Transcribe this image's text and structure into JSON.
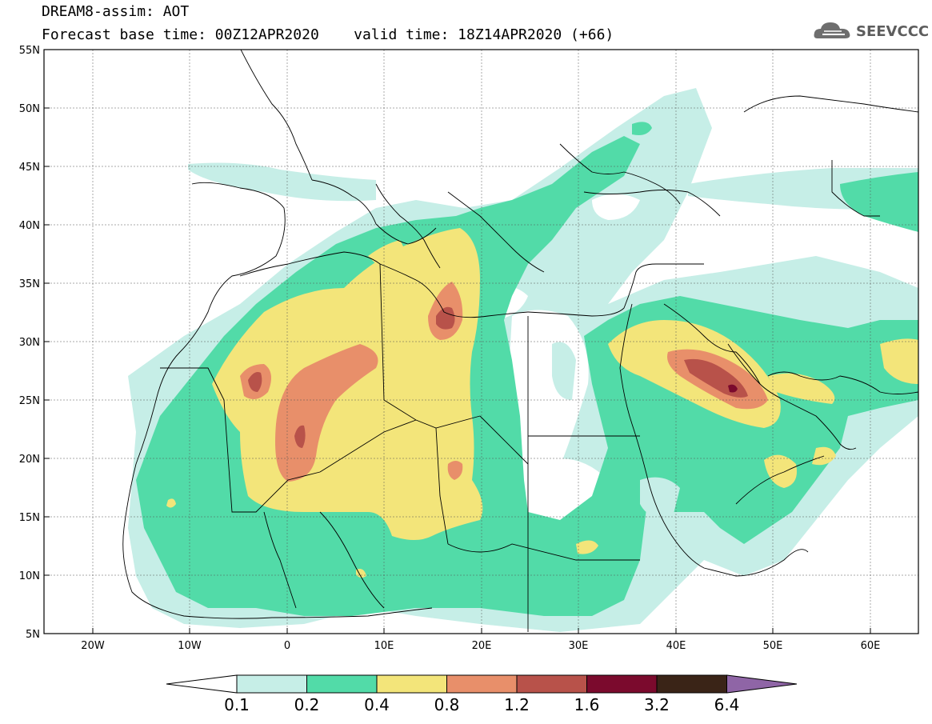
{
  "header": {
    "title_line1": "DREAM8-assim: AOT",
    "title_line2": "Forecast base time: 00Z12APR2020    valid time: 18Z14APR2020 (+66)",
    "logo_text": "SEEVCCC"
  },
  "map": {
    "lat_labels": [
      "55N",
      "50N",
      "45N",
      "40N",
      "35N",
      "30N",
      "25N",
      "20N",
      "15N",
      "10N",
      "5N"
    ],
    "lon_labels": [
      "20W",
      "10W",
      "0",
      "10E",
      "20E",
      "30E",
      "40E",
      "50E",
      "60E"
    ],
    "lat_range": [
      5,
      55
    ],
    "lon_range": [
      -25,
      65
    ]
  },
  "colorbar": {
    "levels": [
      "0.1",
      "0.2",
      "0.4",
      "0.8",
      "1.2",
      "1.6",
      "3.2",
      "6.4"
    ],
    "colors": [
      "#ffffff",
      "#c6eee7",
      "#52dba8",
      "#f3e57a",
      "#e88f6a",
      "#b8524a",
      "#7b0a2d",
      "#3a2417",
      "#8f65a6"
    ]
  }
}
